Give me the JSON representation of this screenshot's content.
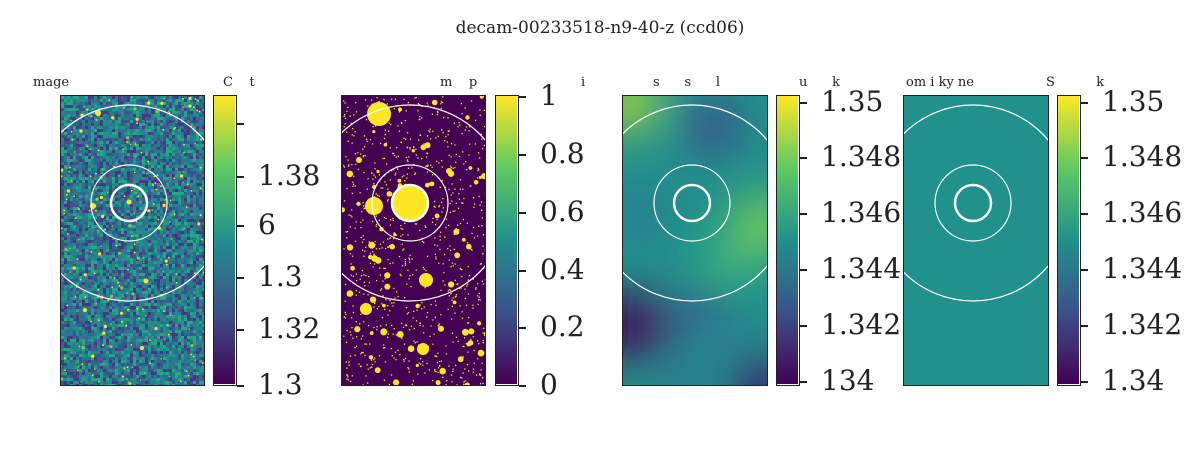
{
  "figure": {
    "title": "decam-00233518-n9-40-z (ccd06)"
  },
  "chart_data": [
    {
      "type": "heatmap",
      "title": "mage",
      "colorbar_title": "C    t",
      "colormap": "viridis",
      "colorbar_ticks": [
        "",
        "1.38",
        "6",
        "1.3",
        "1.32",
        "1.3"
      ],
      "content": "noise image with bright point sources",
      "circles": [
        "inner",
        "middle",
        "outer"
      ]
    },
    {
      "type": "heatmap",
      "title": "m    p",
      "colorbar_title": "i",
      "colormap": "viridis",
      "colorbar_ticks": [
        "1",
        "0.8",
        "0.6",
        "0.4",
        "0.2",
        "0"
      ],
      "colorbar_range": [
        0,
        1
      ],
      "content": "binary mask (purple background, yellow masked sources)",
      "circles": [
        "inner",
        "middle",
        "outer"
      ]
    },
    {
      "type": "heatmap",
      "title": "s      s      l",
      "colorbar_title": "u      k",
      "colormap": "viridis",
      "colorbar_ticks": [
        "1.35",
        "1.348",
        "1.346",
        "1.344",
        "1.342",
        "134"
      ],
      "colorbar_range": [
        1.34,
        1.35
      ],
      "content": "smooth sky background model",
      "circles": [
        "inner",
        "middle",
        "outer"
      ]
    },
    {
      "type": "heatmap",
      "title": "om i ky ne",
      "colorbar_title": "S          k",
      "colormap": "viridis",
      "colorbar_ticks": [
        "1.35",
        "1.348",
        "1.346",
        "1.344",
        "1.342",
        "1.34"
      ],
      "colorbar_range": [
        1.34,
        1.35
      ],
      "content": "uniform constant sky (single color)",
      "uniform_color": "#21918c",
      "circles": [
        "inner",
        "middle",
        "outer"
      ]
    }
  ],
  "colors": {
    "viridis_low": "#440154",
    "viridis_mid": "#21918c",
    "viridis_high": "#fde725",
    "circle_stroke": "#ffffff"
  }
}
